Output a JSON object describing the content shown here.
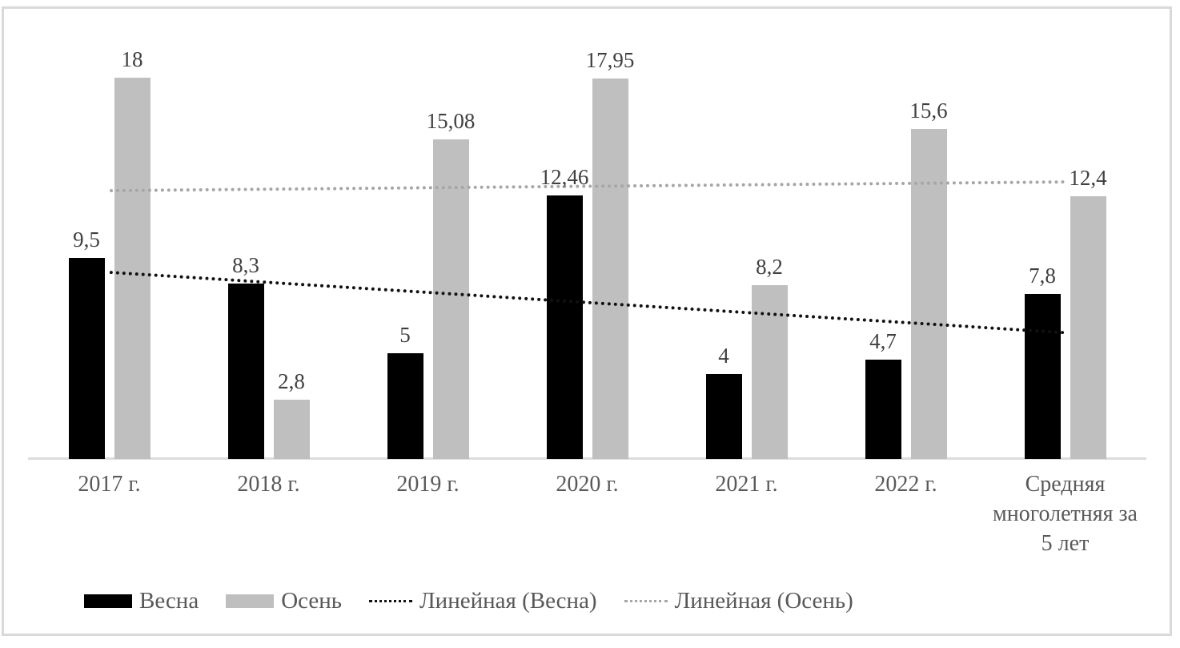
{
  "chart_data": {
    "type": "bar",
    "title": "",
    "xlabel": "",
    "ylabel": "",
    "categories": [
      "2017 г.",
      "2018 г.",
      "2019 г.",
      "2020 г.",
      "2021 г.",
      "2022 г.",
      "Средняя многолетняя за 5 лет"
    ],
    "series": [
      {
        "name": "Весна",
        "color": "#000000",
        "values": [
          9.5,
          8.3,
          5,
          12.46,
          4,
          4.7,
          7.8
        ],
        "value_labels": [
          "9,5",
          "8,3",
          "5",
          "12,46",
          "4",
          "4,7",
          "7,8"
        ]
      },
      {
        "name": "Осень",
        "color": "#bfbfbf",
        "values": [
          18,
          2.8,
          15.08,
          17.95,
          8.2,
          15.6,
          12.4
        ],
        "value_labels": [
          "18",
          "2,8",
          "15,08",
          "17,95",
          "8,2",
          "15,6",
          "12,4"
        ]
      }
    ],
    "trendlines": [
      {
        "name": "Линейная (Весна)",
        "series_index": 0,
        "color": "#111111",
        "style": "dotted"
      },
      {
        "name": "Линейная (Осень)",
        "series_index": 1,
        "color": "#a6a6a6",
        "style": "dotted"
      }
    ],
    "legend": {
      "position": "bottom",
      "entries": [
        "Весна",
        "Осень",
        "Линейная (Весна)",
        "Линейная (Осень)"
      ]
    },
    "axes": {
      "y_axis_visible": false,
      "gridlines": false,
      "ylim": [
        0,
        20
      ],
      "x_label_color": "#595959"
    },
    "value_label_color": "#404040",
    "axis_line_color": "#dcdcdc",
    "border_color": "#d9d9d9"
  }
}
